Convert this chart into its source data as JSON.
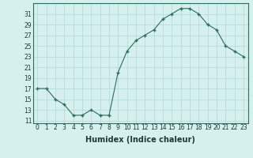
{
  "x": [
    0,
    1,
    2,
    3,
    4,
    5,
    6,
    7,
    8,
    9,
    10,
    11,
    12,
    13,
    14,
    15,
    16,
    17,
    18,
    19,
    20,
    21,
    22,
    23
  ],
  "y": [
    17,
    17,
    15,
    14,
    12,
    12,
    13,
    12,
    12,
    20,
    24,
    26,
    27,
    28,
    30,
    31,
    32,
    32,
    31,
    29,
    28,
    25,
    24,
    23
  ],
  "line_color": "#2d6b5e",
  "marker_color": "#2d6b5e",
  "bg_color": "#d6f0f0",
  "grid_color": "#b0d8d4",
  "xlabel": "Humidex (Indice chaleur)",
  "ylim": [
    10.5,
    33
  ],
  "xlim": [
    -0.5,
    23.5
  ],
  "yticks": [
    11,
    13,
    15,
    17,
    19,
    21,
    23,
    25,
    27,
    29,
    31
  ],
  "xtick_labels": [
    "0",
    "1",
    "2",
    "3",
    "4",
    "5",
    "6",
    "7",
    "8",
    "9",
    "10",
    "11",
    "12",
    "13",
    "14",
    "15",
    "16",
    "17",
    "18",
    "19",
    "20",
    "21",
    "22",
    "23"
  ],
  "label_fontsize": 7,
  "tick_fontsize": 5.5
}
